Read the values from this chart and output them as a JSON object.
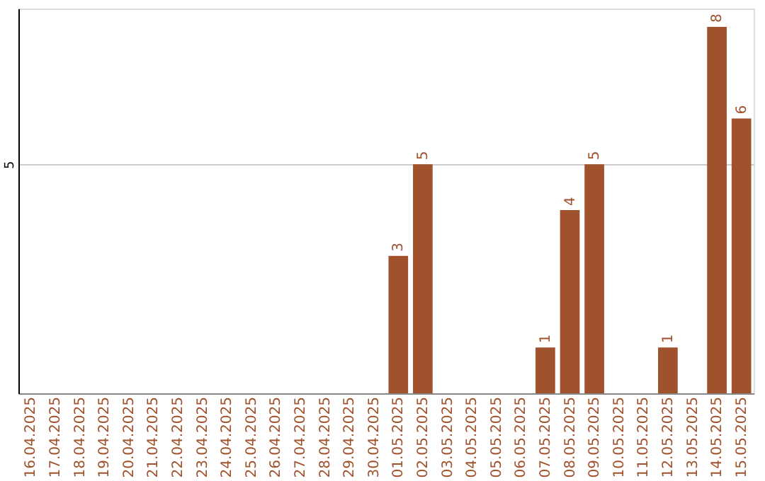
{
  "chart_data": {
    "type": "bar",
    "categories": [
      "16.04.2025",
      "17.04.2025",
      "18.04.2025",
      "19.04.2025",
      "20.04.2025",
      "21.04.2025",
      "22.04.2025",
      "23.04.2025",
      "24.04.2025",
      "25.04.2025",
      "26.04.2025",
      "27.04.2025",
      "28.04.2025",
      "29.04.2025",
      "30.04.2025",
      "01.05.2025",
      "02.05.2025",
      "03.05.2025",
      "04.05.2025",
      "05.05.2025",
      "06.05.2025",
      "07.05.2025",
      "08.05.2025",
      "09.05.2025",
      "10.05.2025",
      "11.05.2025",
      "12.05.2025",
      "13.05.2025",
      "14.05.2025",
      "15.05.2025"
    ],
    "values": [
      null,
      null,
      null,
      null,
      null,
      null,
      null,
      null,
      null,
      null,
      null,
      null,
      null,
      null,
      null,
      3,
      5,
      null,
      null,
      null,
      null,
      1,
      4,
      5,
      null,
      null,
      1,
      null,
      8,
      6
    ],
    "color": "#a0522d",
    "ylim": [
      0,
      8.4
    ],
    "yticks": [
      5
    ],
    "grid": "y",
    "data_labels": true
  }
}
